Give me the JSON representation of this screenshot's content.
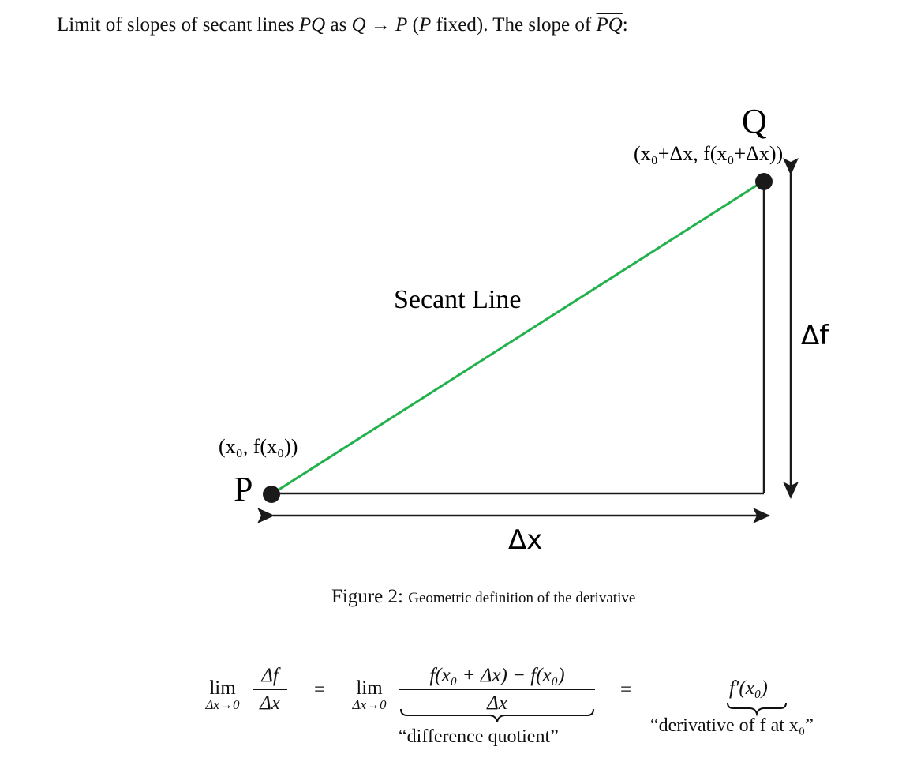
{
  "intro": {
    "prefix": "Limit of slopes of secant lines ",
    "pq": "PQ",
    "as": " as ",
    "q": "Q",
    "arrow": " → ",
    "p": "P",
    "paren_open": " (",
    "p2": "P",
    "fixed": " fixed). The slope of ",
    "pq_bar": "PQ",
    "colon": ":"
  },
  "diagram": {
    "point_q_label": "Q",
    "point_p_label": "P",
    "q_coord": "(x₀+Δx, f(x₀+Δx))",
    "p_coord": "(x₀, f(x₀))",
    "secant_label": "Secant Line",
    "delta_f_label": "Δf",
    "delta_x_label": "Δx",
    "colors": {
      "secant": "#22b14c",
      "ink": "#1a1a1a"
    }
  },
  "caption": {
    "prefix": "Figure 2:",
    "text": "Geometric definition of the derivative"
  },
  "equation": {
    "lim_word": "lim",
    "lim_sub": "Δx→0",
    "lhs_num": "Δf",
    "lhs_den": "Δx",
    "equals": "=",
    "dq_num": "f(x₀ + Δx) − f(x₀)",
    "dq_den": "Δx",
    "dq_label": "“difference quotient”",
    "deriv": "f′(x₀)",
    "deriv_label": "“derivative of f at x₀”"
  }
}
